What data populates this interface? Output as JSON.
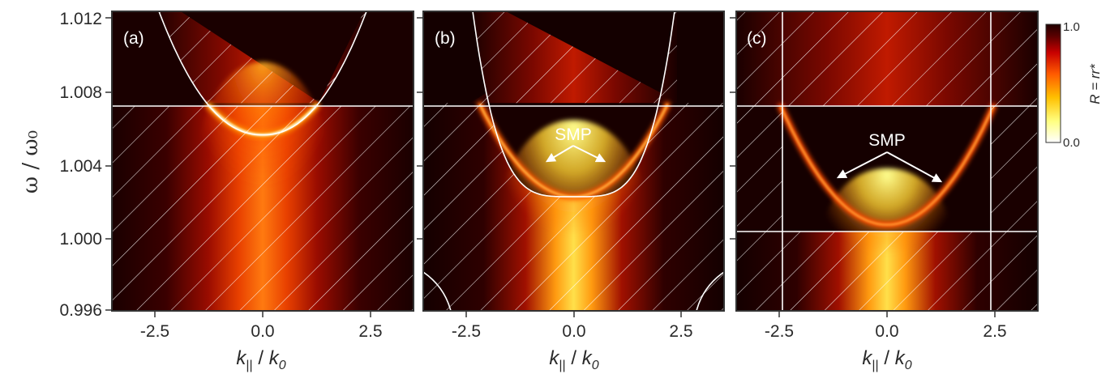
{
  "chart_data": [
    {
      "type": "heatmap",
      "panel_label": "(a)",
      "xlim": [
        -3.5,
        3.5
      ],
      "ylim": [
        0.996,
        1.012
      ],
      "ylabel": "ω / ω₀",
      "yticks": [
        "1.012",
        "1.008",
        "1.004",
        "1.000",
        "0.996"
      ],
      "xticks": [
        "-2.5",
        "0.0",
        "2.5"
      ],
      "xlabel": "k|| / k0",
      "light_line_omega": 1.0071,
      "mode_min_omega": 1.0054,
      "mode_crossing_k": 1.3,
      "annotation": ""
    },
    {
      "type": "heatmap",
      "panel_label": "(b)",
      "xlim": [
        -3.5,
        3.5
      ],
      "ylim": [
        0.996,
        1.012
      ],
      "xticks": [
        "-2.5",
        "0.0",
        "2.5"
      ],
      "xlabel": "k|| / k0",
      "light_line_omega": 1.0071,
      "mode_min_omega": 1.0021,
      "mode_crossing_k": 2.2,
      "annotation": "SMP"
    },
    {
      "type": "heatmap",
      "panel_label": "(c)",
      "xlim": [
        -3.5,
        3.5
      ],
      "ylim": [
        0.996,
        1.012
      ],
      "xticks": [
        "-2.5",
        "0.0",
        "2.5"
      ],
      "xlabel": "k|| / k0",
      "light_line_omega": 1.0071,
      "lower_line_omega": 1.0003,
      "vertical_lines_k": [
        -2.5,
        2.5
      ],
      "mode_min_omega": 1.0006,
      "mode_crossing_k": 2.5,
      "annotation": "SMP"
    }
  ],
  "colorbar": {
    "title": "R = rr*",
    "max_label": "1.0",
    "min_label": "0.0",
    "colors": [
      "#ffffff",
      "#ffff80",
      "#ffc000",
      "#ff5a00",
      "#c80000",
      "#5a0000",
      "#200000"
    ]
  }
}
